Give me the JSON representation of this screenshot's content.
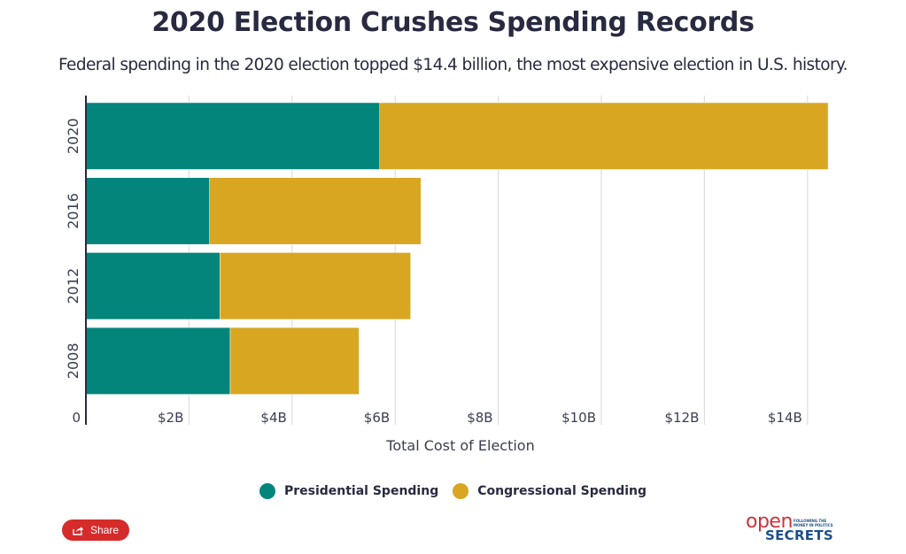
{
  "chart_data": {
    "type": "bar",
    "orientation": "horizontal",
    "stacked": true,
    "title": "2020 Election Crushes Spending Records",
    "subtitle": "Federal spending in the 2020 election topped $14.4 billion, the most expensive election in U.S. history.",
    "categories": [
      "2020",
      "2016",
      "2012",
      "2008"
    ],
    "series": [
      {
        "name": "Presidential Spending",
        "color": "#03857c",
        "values": [
          5.7,
          2.4,
          2.6,
          2.8
        ]
      },
      {
        "name": "Congressional Spending",
        "color": "#d9a622",
        "values": [
          8.7,
          4.1,
          3.7,
          2.5
        ]
      }
    ],
    "xlabel": "Total Cost of Election",
    "ylabel": "",
    "xlim": [
      0,
      15
    ],
    "x_ticks": [
      0,
      2,
      4,
      6,
      8,
      10,
      12,
      14
    ],
    "x_tick_labels": [
      "0",
      "$2B",
      "$4B",
      "$6B",
      "$8B",
      "$10B",
      "$12B",
      "$14B"
    ],
    "unit": "billion USD",
    "grid": true,
    "legend": "bottom-center"
  },
  "share": {
    "label": "Share",
    "icon": "share-icon"
  },
  "logo": {
    "top": "open",
    "bottom": "SECRETS",
    "tagline_1": "FOLLOWING THE",
    "tagline_2": "MONEY IN POLITICS"
  }
}
